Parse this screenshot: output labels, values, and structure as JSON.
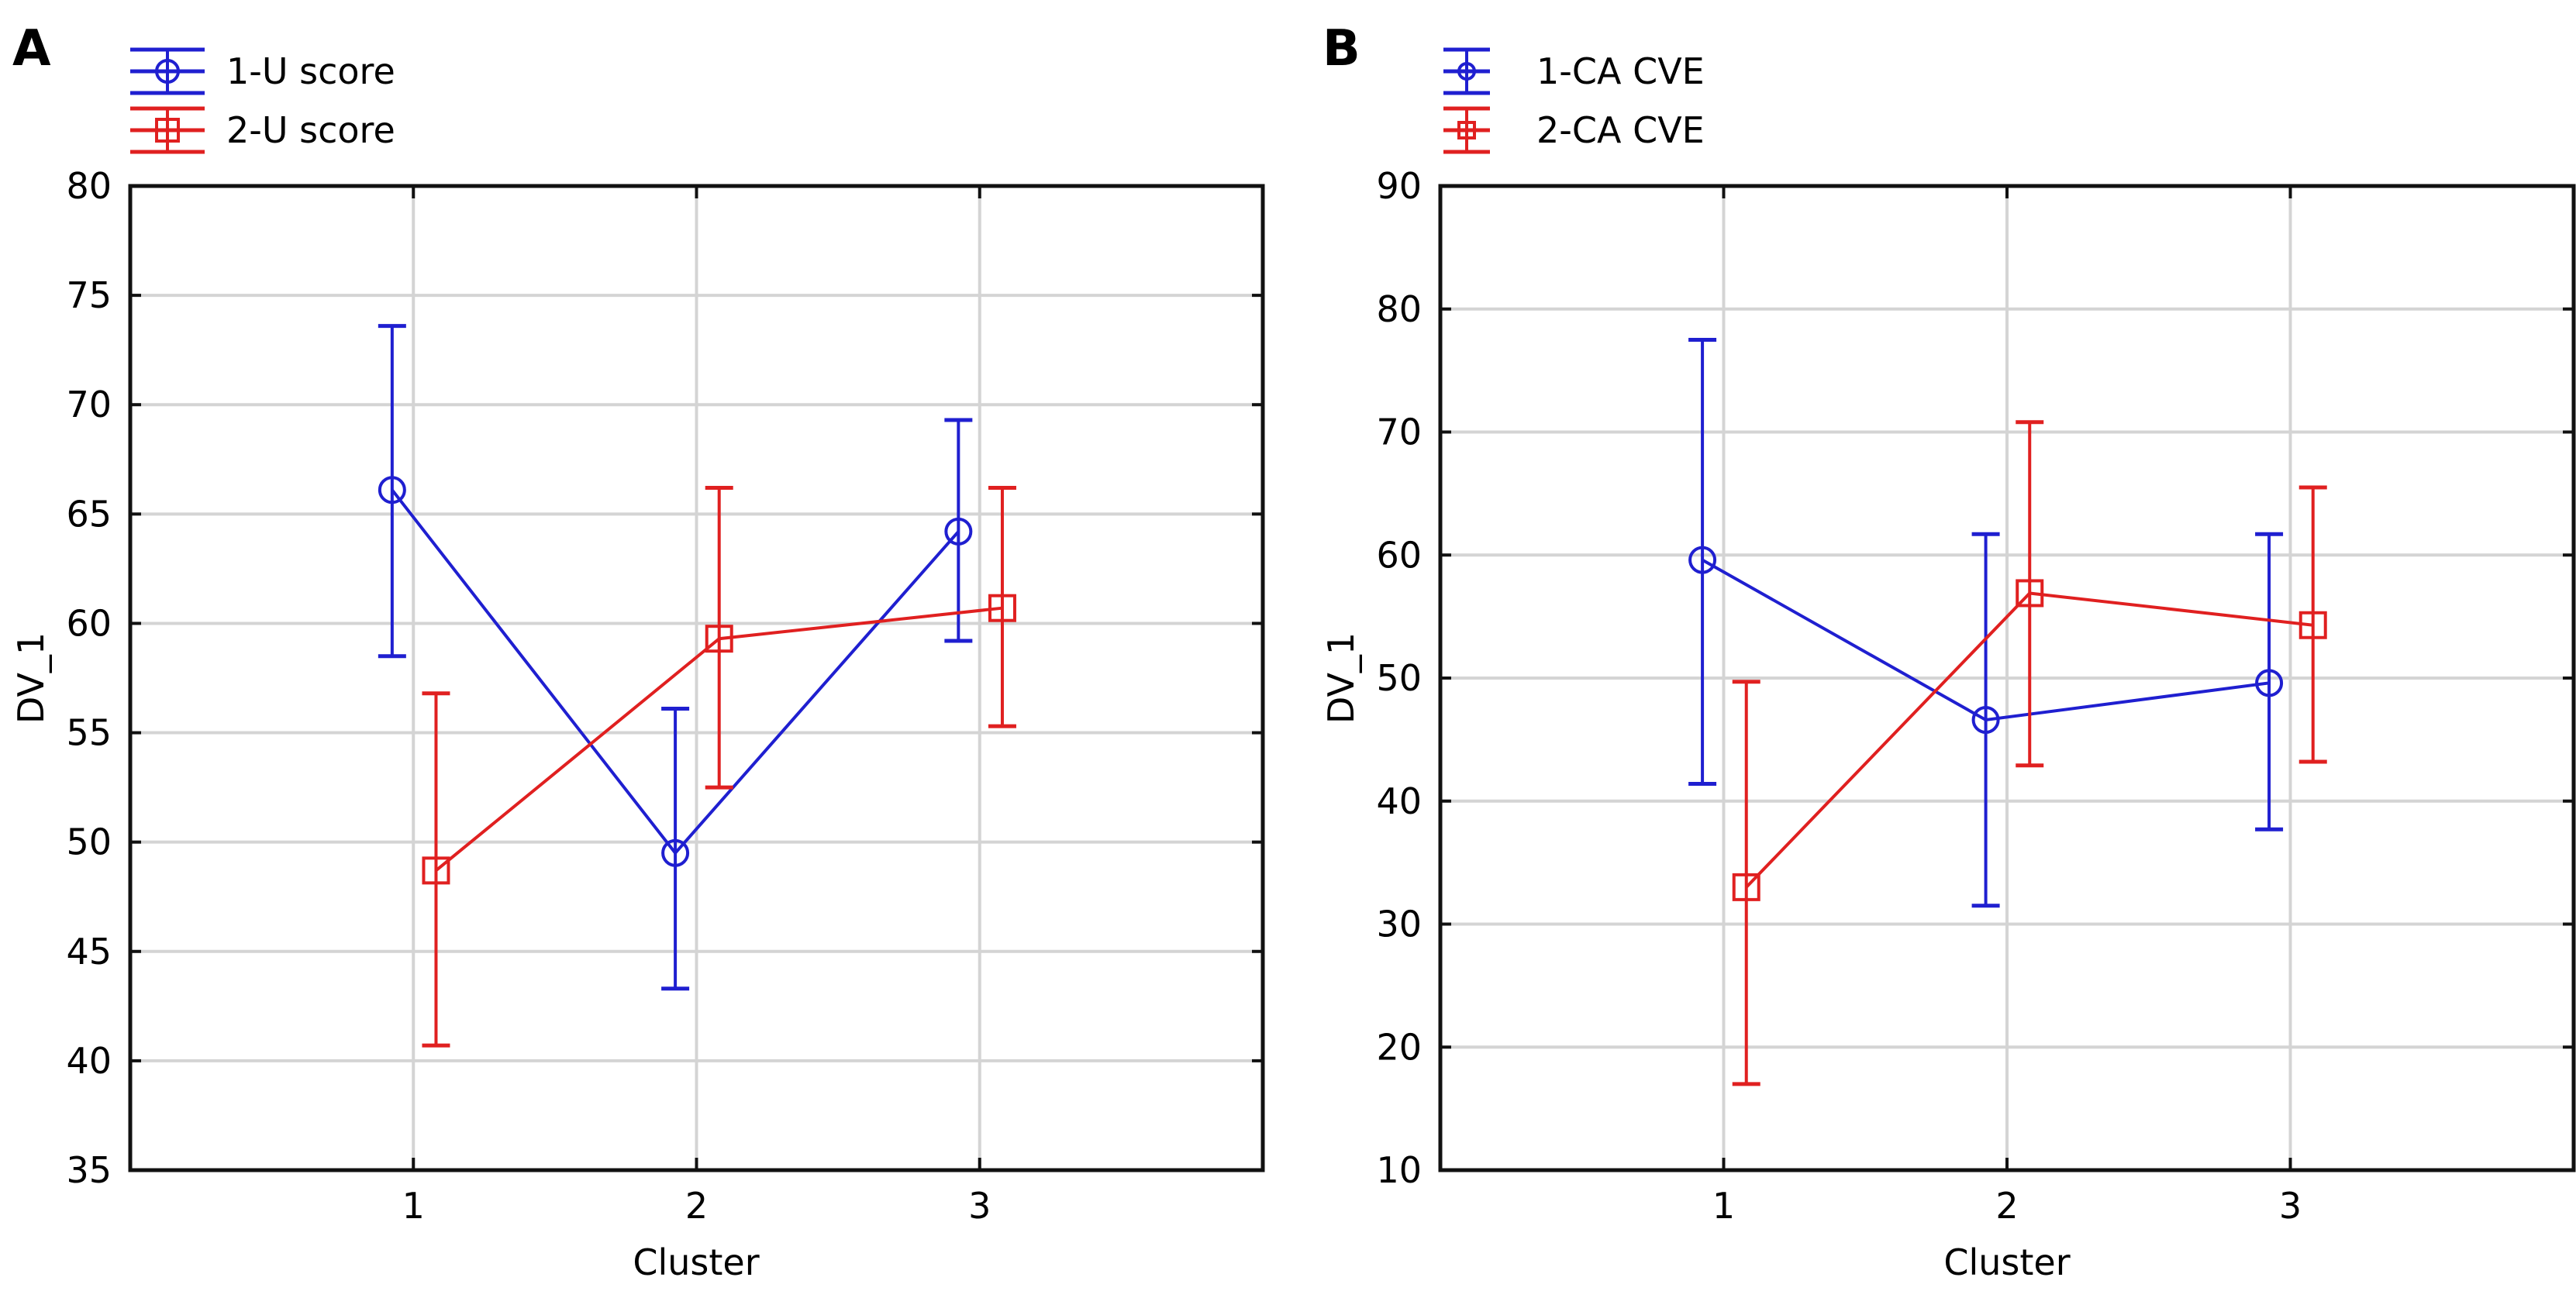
{
  "chart_data": [
    {
      "type": "line",
      "panel_label": "A",
      "title": "",
      "xlabel": "Cluster",
      "ylabel": "DV_1",
      "categories": [
        "1",
        "2",
        "3"
      ],
      "x": [
        1,
        2,
        3
      ],
      "xlim": [
        0,
        4
      ],
      "ylim": [
        35,
        80
      ],
      "yticks": [
        35,
        40,
        45,
        50,
        55,
        60,
        65,
        70,
        75,
        80
      ],
      "grid": true,
      "legend_position": "top-left",
      "error_bars": true,
      "series": [
        {
          "name": "1-U score",
          "marker": "circle",
          "color": "#1f1fd0",
          "values": [
            66.1,
            49.5,
            64.2
          ],
          "lower": [
            58.5,
            43.3,
            59.2
          ],
          "upper": [
            73.6,
            56.1,
            69.3
          ]
        },
        {
          "name": "2-U score",
          "marker": "square",
          "color": "#e02020",
          "values": [
            48.7,
            59.3,
            60.7
          ],
          "lower": [
            40.7,
            52.5,
            55.3
          ],
          "upper": [
            56.8,
            66.2,
            66.2
          ]
        }
      ]
    },
    {
      "type": "line",
      "panel_label": "B",
      "title": "",
      "xlabel": "Cluster",
      "ylabel": "DV_1",
      "categories": [
        "1",
        "2",
        "3"
      ],
      "x": [
        1,
        2,
        3
      ],
      "xlim": [
        0,
        4
      ],
      "ylim": [
        10,
        90
      ],
      "yticks": [
        10,
        20,
        30,
        40,
        50,
        60,
        70,
        80,
        90
      ],
      "grid": true,
      "legend_position": "top-left",
      "error_bars": true,
      "series": [
        {
          "name": "1-CA CVE",
          "marker": "circle",
          "color": "#1f1fd0",
          "values": [
            59.6,
            46.6,
            49.6
          ],
          "lower": [
            41.4,
            31.5,
            37.7
          ],
          "upper": [
            77.5,
            61.7,
            61.7
          ]
        },
        {
          "name": "2-CA CVE",
          "marker": "square",
          "color": "#e02020",
          "values": [
            33.0,
            56.9,
            54.3
          ],
          "lower": [
            17.0,
            42.9,
            43.2
          ],
          "upper": [
            49.7,
            70.8,
            65.5
          ]
        }
      ]
    }
  ]
}
